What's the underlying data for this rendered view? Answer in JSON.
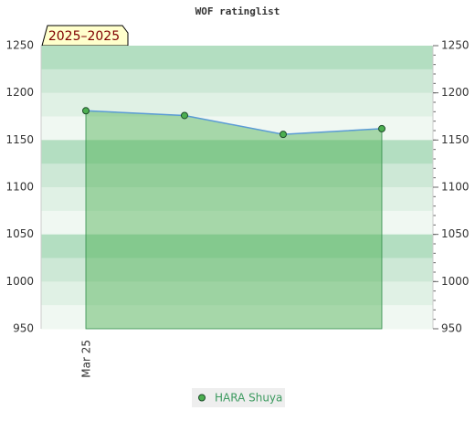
{
  "chart_data": {
    "type": "line",
    "title": "WOF ratinglist",
    "annotation": "2025–2025",
    "categories": [
      "Mar 25",
      null,
      null,
      null
    ],
    "series": [
      {
        "name": "HARA Shuya",
        "color": "#4caf50",
        "line_color": "#5b9bd5",
        "values": [
          1181,
          1176,
          1156,
          1162
        ]
      }
    ],
    "ylim": [
      950,
      1250
    ],
    "yticks": [
      950,
      1000,
      1050,
      1100,
      1150,
      1200,
      1250
    ],
    "right_axis": true
  }
}
